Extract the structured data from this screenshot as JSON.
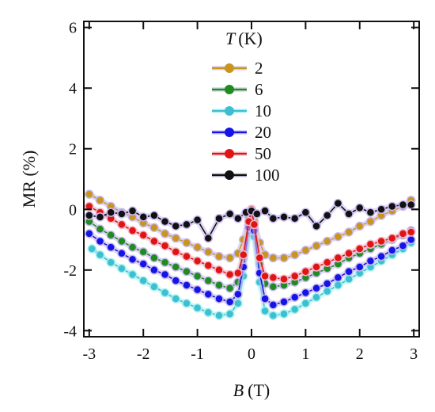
{
  "chart_data": {
    "type": "line",
    "xlabel_var": "B",
    "xlabel_unit": "(T)",
    "ylabel": "MR (%)",
    "xlim": [
      -3.1,
      3.1
    ],
    "ylim": [
      -4.2,
      6.2
    ],
    "xticks": [
      -3,
      -2,
      -1,
      0,
      1,
      2,
      3
    ],
    "yticks": [
      -4,
      -2,
      0,
      2,
      4,
      6
    ],
    "legend_title_var": "T",
    "legend_title_unit": "(K)",
    "legend_placement": "top-center",
    "grid": false,
    "series": [
      {
        "name": "2",
        "color": "#c8961e",
        "shadow": "#c9b8f0",
        "x": [
          -3.0,
          -2.8,
          -2.6,
          -2.4,
          -2.2,
          -2.0,
          -1.8,
          -1.6,
          -1.4,
          -1.2,
          -1.0,
          -0.8,
          -0.6,
          -0.4,
          -0.25,
          -0.15,
          -0.05,
          0.0,
          0.05,
          0.15,
          0.25,
          0.4,
          0.6,
          0.8,
          1.0,
          1.2,
          1.4,
          1.6,
          1.8,
          2.0,
          2.2,
          2.4,
          2.6,
          2.8,
          2.95
        ],
        "y": [
          0.5,
          0.3,
          0.1,
          -0.1,
          -0.25,
          -0.45,
          -0.6,
          -0.8,
          -0.95,
          -1.1,
          -1.25,
          -1.4,
          -1.55,
          -1.6,
          -1.45,
          -1.0,
          -0.3,
          0.0,
          -0.4,
          -1.1,
          -1.5,
          -1.6,
          -1.6,
          -1.5,
          -1.35,
          -1.2,
          -1.05,
          -0.9,
          -0.75,
          -0.55,
          -0.4,
          -0.2,
          -0.05,
          0.1,
          0.3
        ]
      },
      {
        "name": "6",
        "color": "#1e8c1e",
        "shadow": "#c9b8f0",
        "x": [
          -3.0,
          -2.8,
          -2.6,
          -2.4,
          -2.2,
          -2.0,
          -1.8,
          -1.6,
          -1.4,
          -1.2,
          -1.0,
          -0.8,
          -0.6,
          -0.4,
          -0.25,
          -0.15,
          -0.05,
          0.0,
          0.05,
          0.15,
          0.25,
          0.4,
          0.6,
          0.8,
          1.0,
          1.2,
          1.4,
          1.6,
          1.8,
          2.0,
          2.2,
          2.4,
          2.6,
          2.8,
          2.95
        ],
        "y": [
          -0.4,
          -0.65,
          -0.85,
          -1.05,
          -1.25,
          -1.4,
          -1.6,
          -1.75,
          -1.9,
          -2.05,
          -2.2,
          -2.35,
          -2.5,
          -2.6,
          -2.4,
          -1.6,
          -0.5,
          0.0,
          -0.6,
          -1.8,
          -2.45,
          -2.55,
          -2.5,
          -2.4,
          -2.25,
          -2.1,
          -1.95,
          -1.8,
          -1.6,
          -1.45,
          -1.3,
          -1.15,
          -1.0,
          -0.85,
          -0.7
        ]
      },
      {
        "name": "10",
        "color": "#3cbfd0",
        "shadow": "#a8f0f0",
        "x": [
          -2.95,
          -2.8,
          -2.6,
          -2.4,
          -2.2,
          -2.0,
          -1.8,
          -1.6,
          -1.4,
          -1.2,
          -1.0,
          -0.8,
          -0.6,
          -0.4,
          -0.25,
          -0.15,
          -0.05,
          0.0,
          0.05,
          0.15,
          0.25,
          0.4,
          0.6,
          0.8,
          1.0,
          1.2,
          1.4,
          1.6,
          1.8,
          2.0,
          2.2,
          2.4,
          2.6,
          2.8,
          2.95
        ],
        "y": [
          -1.3,
          -1.5,
          -1.75,
          -1.95,
          -2.15,
          -2.35,
          -2.55,
          -2.75,
          -2.95,
          -3.1,
          -3.25,
          -3.4,
          -3.5,
          -3.45,
          -3.1,
          -2.2,
          -0.8,
          0.0,
          -0.9,
          -2.4,
          -3.35,
          -3.5,
          -3.45,
          -3.3,
          -3.1,
          -2.9,
          -2.7,
          -2.5,
          -2.3,
          -2.1,
          -1.9,
          -1.7,
          -1.5,
          -1.3,
          -1.1
        ]
      },
      {
        "name": "20",
        "color": "#1414e6",
        "shadow": "#c9b8f0",
        "x": [
          -3.0,
          -2.8,
          -2.6,
          -2.4,
          -2.2,
          -2.0,
          -1.8,
          -1.6,
          -1.4,
          -1.2,
          -1.0,
          -0.8,
          -0.6,
          -0.4,
          -0.25,
          -0.15,
          -0.05,
          0.0,
          0.05,
          0.15,
          0.25,
          0.4,
          0.6,
          0.8,
          1.0,
          1.2,
          1.4,
          1.6,
          1.8,
          2.0,
          2.2,
          2.4,
          2.6,
          2.8,
          2.95
        ],
        "y": [
          -0.8,
          -1.05,
          -1.25,
          -1.45,
          -1.65,
          -1.8,
          -2.0,
          -2.15,
          -2.35,
          -2.5,
          -2.65,
          -2.8,
          -2.95,
          -3.05,
          -2.8,
          -1.9,
          -0.6,
          0.0,
          -0.7,
          -2.1,
          -2.95,
          -3.15,
          -3.05,
          -2.9,
          -2.75,
          -2.6,
          -2.45,
          -2.25,
          -2.05,
          -1.9,
          -1.7,
          -1.55,
          -1.35,
          -1.2,
          -1.0
        ]
      },
      {
        "name": "50",
        "color": "#e01414",
        "shadow": "#f0b8c8",
        "x": [
          -3.0,
          -2.8,
          -2.6,
          -2.4,
          -2.2,
          -2.0,
          -1.8,
          -1.6,
          -1.4,
          -1.2,
          -1.0,
          -0.8,
          -0.6,
          -0.4,
          -0.25,
          -0.15,
          -0.05,
          0.0,
          0.05,
          0.15,
          0.25,
          0.4,
          0.6,
          0.8,
          1.0,
          1.2,
          1.4,
          1.6,
          1.8,
          2.0,
          2.2,
          2.4,
          2.6,
          2.8,
          2.95
        ],
        "y": [
          0.1,
          -0.1,
          -0.3,
          -0.5,
          -0.7,
          -0.85,
          -1.05,
          -1.2,
          -1.4,
          -1.55,
          -1.7,
          -1.85,
          -2.0,
          -2.15,
          -2.1,
          -1.5,
          -0.4,
          0.0,
          -0.5,
          -1.6,
          -2.2,
          -2.25,
          -2.3,
          -2.2,
          -2.05,
          -1.9,
          -1.75,
          -1.6,
          -1.45,
          -1.3,
          -1.15,
          -1.05,
          -0.95,
          -0.8,
          -0.75
        ]
      },
      {
        "name": "100",
        "color": "#111111",
        "shadow": "#c9b8f0",
        "x": [
          -3.0,
          -2.8,
          -2.6,
          -2.4,
          -2.2,
          -2.0,
          -1.8,
          -1.6,
          -1.4,
          -1.2,
          -1.0,
          -0.8,
          -0.6,
          -0.4,
          -0.25,
          -0.1,
          0.0,
          0.1,
          0.25,
          0.4,
          0.6,
          0.8,
          1.0,
          1.2,
          1.4,
          1.6,
          1.8,
          2.0,
          2.2,
          2.4,
          2.6,
          2.8,
          2.95
        ],
        "y": [
          -0.2,
          -0.25,
          -0.1,
          -0.15,
          -0.05,
          -0.25,
          -0.2,
          -0.4,
          -0.55,
          -0.5,
          -0.35,
          -0.95,
          -0.3,
          -0.15,
          -0.3,
          -0.1,
          -0.05,
          -0.15,
          -0.05,
          -0.3,
          -0.25,
          -0.3,
          -0.1,
          -0.55,
          -0.2,
          0.2,
          -0.15,
          0.05,
          -0.1,
          0.0,
          0.1,
          0.15,
          0.15
        ]
      }
    ]
  }
}
